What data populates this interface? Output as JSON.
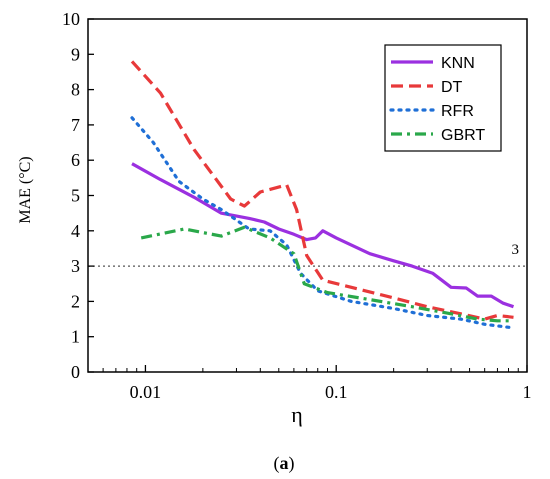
{
  "chart_data": {
    "type": "line",
    "xscale": "log",
    "xlabel": "η",
    "ylabel": "MAE (°C)",
    "xlim": [
      0.005,
      1
    ],
    "ylim": [
      0,
      10
    ],
    "xticks": [
      {
        "value": 0.01,
        "label": "0.01"
      },
      {
        "value": 0.1,
        "label": "0.1"
      },
      {
        "value": 1,
        "label": "1"
      }
    ],
    "yticks": [
      0,
      1,
      2,
      3,
      4,
      5,
      6,
      7,
      8,
      9,
      10
    ],
    "grid": false,
    "legend_position": "top-right",
    "reference_line": {
      "y": 3,
      "label": "3",
      "style": "dotted",
      "color": "#555555"
    },
    "caption": {
      "open": "(",
      "letter": "a",
      "close": ")"
    },
    "series": [
      {
        "name": "KNN",
        "color": "#9b30e0",
        "dash": "solid",
        "points": [
          [
            0.0085,
            5.9
          ],
          [
            0.012,
            5.45
          ],
          [
            0.018,
            4.95
          ],
          [
            0.025,
            4.5
          ],
          [
            0.035,
            4.35
          ],
          [
            0.042,
            4.25
          ],
          [
            0.05,
            4.05
          ],
          [
            0.06,
            3.9
          ],
          [
            0.07,
            3.75
          ],
          [
            0.078,
            3.8
          ],
          [
            0.085,
            4.0
          ],
          [
            0.1,
            3.8
          ],
          [
            0.15,
            3.35
          ],
          [
            0.2,
            3.15
          ],
          [
            0.25,
            3.0
          ],
          [
            0.32,
            2.8
          ],
          [
            0.4,
            2.4
          ],
          [
            0.48,
            2.38
          ],
          [
            0.55,
            2.15
          ],
          [
            0.65,
            2.15
          ],
          [
            0.75,
            1.95
          ],
          [
            0.85,
            1.85
          ]
        ]
      },
      {
        "name": "DT",
        "color": "#e8393a",
        "dash": "dashed",
        "points": [
          [
            0.0085,
            8.8
          ],
          [
            0.012,
            7.9
          ],
          [
            0.018,
            6.3
          ],
          [
            0.028,
            4.9
          ],
          [
            0.033,
            4.7
          ],
          [
            0.04,
            5.1
          ],
          [
            0.055,
            5.3
          ],
          [
            0.062,
            4.6
          ],
          [
            0.07,
            3.3
          ],
          [
            0.085,
            2.6
          ],
          [
            0.12,
            2.4
          ],
          [
            0.2,
            2.1
          ],
          [
            0.3,
            1.85
          ],
          [
            0.45,
            1.65
          ],
          [
            0.6,
            1.5
          ],
          [
            0.7,
            1.6
          ],
          [
            0.85,
            1.55
          ]
        ]
      },
      {
        "name": "RFR",
        "color": "#1f6fd6",
        "dash": "dotted",
        "points": [
          [
            0.0085,
            7.2
          ],
          [
            0.011,
            6.5
          ],
          [
            0.015,
            5.4
          ],
          [
            0.02,
            4.9
          ],
          [
            0.025,
            4.6
          ],
          [
            0.035,
            4.05
          ],
          [
            0.045,
            4.0
          ],
          [
            0.055,
            3.6
          ],
          [
            0.065,
            2.8
          ],
          [
            0.08,
            2.3
          ],
          [
            0.12,
            2.0
          ],
          [
            0.2,
            1.8
          ],
          [
            0.3,
            1.6
          ],
          [
            0.45,
            1.5
          ],
          [
            0.6,
            1.35
          ],
          [
            0.85,
            1.25
          ]
        ]
      },
      {
        "name": "GBRT",
        "color": "#2aa84a",
        "dash": "dashdot",
        "points": [
          [
            0.0095,
            3.8
          ],
          [
            0.016,
            4.05
          ],
          [
            0.025,
            3.85
          ],
          [
            0.033,
            4.1
          ],
          [
            0.045,
            3.8
          ],
          [
            0.06,
            3.35
          ],
          [
            0.068,
            2.5
          ],
          [
            0.09,
            2.25
          ],
          [
            0.15,
            2.05
          ],
          [
            0.25,
            1.85
          ],
          [
            0.4,
            1.65
          ],
          [
            0.55,
            1.5
          ],
          [
            0.7,
            1.45
          ],
          [
            0.85,
            1.45
          ]
        ]
      }
    ]
  }
}
